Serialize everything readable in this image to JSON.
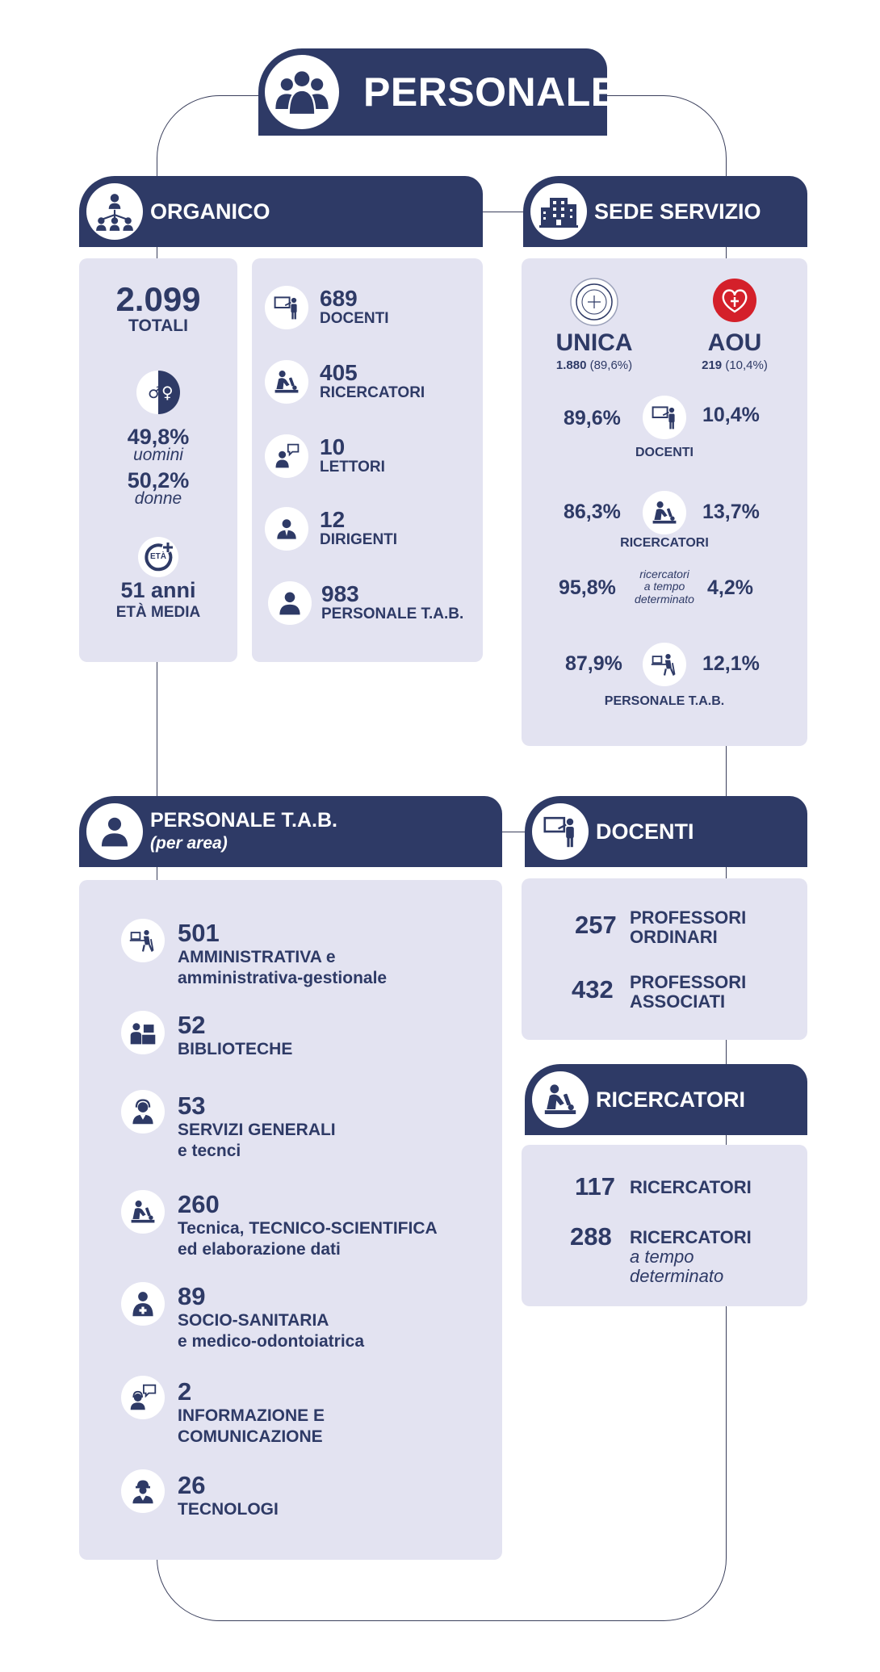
{
  "main_title": "PERSONALE",
  "organico": {
    "title": "ORGANICO",
    "totali_value": "2.099",
    "totali_label": "TOTALI",
    "uomini_pct": "49,8%",
    "uomini_label": "uomini",
    "donne_pct": "50,2%",
    "donne_label": "donne",
    "eta_badge": "ETÀ",
    "eta_value": "51 anni",
    "eta_label": "ETÀ MEDIA",
    "categories": [
      {
        "value": "689",
        "label": "DOCENTI"
      },
      {
        "value": "405",
        "label": "RICERCATORI"
      },
      {
        "value": "10",
        "label": "LETTORI"
      },
      {
        "value": "12",
        "label": "DIRIGENTI"
      },
      {
        "value": "983",
        "label": "PERSONALE T.A.B."
      }
    ]
  },
  "sede": {
    "title": "SEDE SERVIZIO",
    "unica_name": "UNICA",
    "unica_count": "1.880",
    "unica_pct": "(89,6%)",
    "aou_name": "AOU",
    "aou_count": "219",
    "aou_pct": "(10,4%)",
    "rows": [
      {
        "left": "89,6%",
        "right": "10,4%",
        "label": "DOCENTI"
      },
      {
        "left": "86,3%",
        "right": "13,7%",
        "label": "RICERCATORI"
      },
      {
        "left": "95,8%",
        "right": "4,2%",
        "label_l1": "ricercatori",
        "label_l2": "a tempo",
        "label_l3": "determinato"
      },
      {
        "left": "87,9%",
        "right": "12,1%",
        "label": "PERSONALE T.A.B."
      }
    ]
  },
  "tab": {
    "title": "PERSONALE T.A.B.",
    "subtitle": "(per area)",
    "items": [
      {
        "value": "501",
        "l1": "AMMINISTRATIVA e",
        "l2": "amministrativa-gestionale"
      },
      {
        "value": "52",
        "l1": "BIBLIOTECHE",
        "l2": ""
      },
      {
        "value": "53",
        "l1": "SERVIZI GENERALI",
        "l2": "e tecnci"
      },
      {
        "value": "260",
        "l1": "Tecnica, TECNICO-SCIENTIFICA",
        "l2": "ed elaborazione dati"
      },
      {
        "value": "89",
        "l1": "SOCIO-SANITARIA",
        "l2": "e medico-odontoiatrica"
      },
      {
        "value": "2",
        "l1": "INFORMAZIONE E",
        "l2": "COMUNICAZIONE"
      },
      {
        "value": "26",
        "l1": "TECNOLOGI",
        "l2": ""
      }
    ]
  },
  "docenti": {
    "title": "DOCENTI",
    "items": [
      {
        "value": "257",
        "l1": "PROFESSORI",
        "l2": "ORDINARI"
      },
      {
        "value": "432",
        "l1": "PROFESSORI",
        "l2": "ASSOCIATI"
      }
    ]
  },
  "ricercatori": {
    "title": "RICERCATORI",
    "items": [
      {
        "value": "117",
        "l1": "RICERCATORI",
        "l2": "",
        "l3": ""
      },
      {
        "value": "288",
        "l1": "RICERCATORI",
        "l2": "a tempo",
        "l3": "determinato"
      }
    ]
  },
  "colors": {
    "navy": "#2e3a66",
    "panel": "#e3e3f1",
    "aou_red": "#d4202a"
  }
}
